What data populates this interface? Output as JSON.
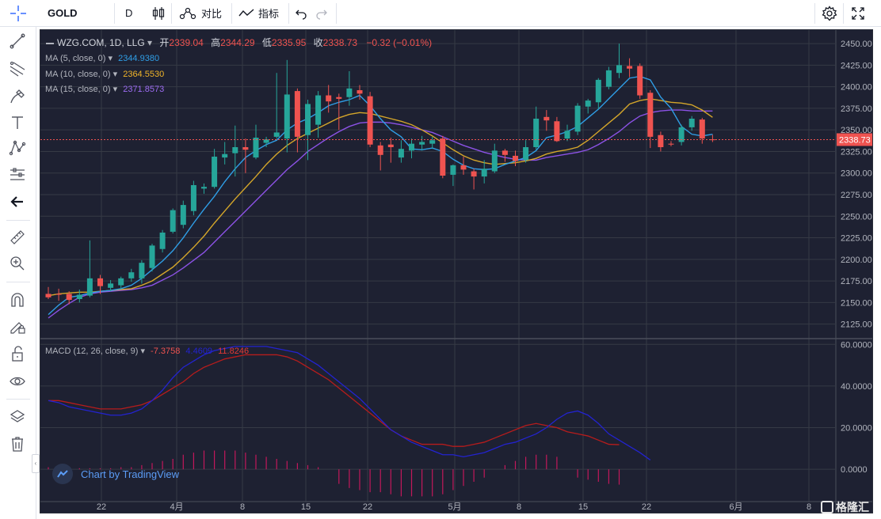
{
  "toolbar": {
    "symbol": "GOLD",
    "interval": "D",
    "compare_label": "对比",
    "indicators_label": "指标"
  },
  "legend": {
    "title": "WZG.COM, 1D, LLG",
    "ohlc": {
      "open_label": "开",
      "open": "2339.04",
      "high_label": "高",
      "high": "2344.29",
      "low_label": "低",
      "low": "2335.95",
      "close_label": "收",
      "close": "2338.73",
      "change": "−0.32 (−0.01%)"
    },
    "ma5": {
      "label": "MA (5, close, 0)",
      "value": "2344.9380",
      "color": "#2f9ee6"
    },
    "ma10": {
      "label": "MA (10, close, 0)",
      "value": "2364.5530",
      "color": "#d4a62a"
    },
    "ma15": {
      "label": "MA (15, close, 0)",
      "value": "2371.8573",
      "color": "#8c52e6"
    },
    "macd": {
      "label": "MACD (12, 26, close, 9)",
      "hist": "-7.3758",
      "macd": "4.4609",
      "signal": "11.8246"
    }
  },
  "branding": {
    "tv": "Chart by TradingView",
    "watermark": "格隆汇"
  },
  "colors": {
    "up": "#26a69a",
    "down": "#ef5350",
    "bg": "#1e2132",
    "grid": "#363a45",
    "macd_line": "#2323d0",
    "signal_line": "#b71c1c",
    "hist": "#c2185b"
  },
  "chart_data": {
    "type": "candlestick",
    "price_axis": {
      "ticks": [
        2125,
        2150,
        2175,
        2200,
        2225,
        2250,
        2275,
        2300,
        2325,
        2350,
        2375,
        2400,
        2425,
        2450
      ],
      "last_price": "2338.73",
      "ylim": [
        2110,
        2462
      ]
    },
    "macd_axis": {
      "ticks": [
        "0.0000",
        "20.0000",
        "40.0000",
        "60.0000"
      ],
      "ylim": [
        -14,
        62
      ]
    },
    "x_tick_labels": [
      "22",
      "4月",
      "8",
      "15",
      "22",
      "5月",
      "8",
      "15",
      "22",
      "6月",
      "8"
    ],
    "candles": [
      {
        "o": 2160,
        "h": 2168,
        "l": 2154,
        "c": 2156
      },
      {
        "o": 2160,
        "h": 2166,
        "l": 2152,
        "c": 2159
      },
      {
        "o": 2160,
        "h": 2163,
        "l": 2148,
        "c": 2153
      },
      {
        "o": 2154,
        "h": 2165,
        "l": 2150,
        "c": 2159
      },
      {
        "o": 2158,
        "h": 2222,
        "l": 2156,
        "c": 2178
      },
      {
        "o": 2178,
        "h": 2182,
        "l": 2160,
        "c": 2169
      },
      {
        "o": 2167,
        "h": 2176,
        "l": 2163,
        "c": 2172
      },
      {
        "o": 2170,
        "h": 2180,
        "l": 2166,
        "c": 2178
      },
      {
        "o": 2178,
        "h": 2189,
        "l": 2174,
        "c": 2185
      },
      {
        "o": 2178,
        "h": 2199,
        "l": 2172,
        "c": 2196
      },
      {
        "o": 2190,
        "h": 2218,
        "l": 2186,
        "c": 2216
      },
      {
        "o": 2212,
        "h": 2234,
        "l": 2208,
        "c": 2231
      },
      {
        "o": 2232,
        "h": 2259,
        "l": 2230,
        "c": 2257
      },
      {
        "o": 2240,
        "h": 2268,
        "l": 2236,
        "c": 2263
      },
      {
        "o": 2256,
        "h": 2291,
        "l": 2251,
        "c": 2286
      },
      {
        "o": 2282,
        "h": 2288,
        "l": 2276,
        "c": 2284
      },
      {
        "o": 2284,
        "h": 2328,
        "l": 2282,
        "c": 2319
      },
      {
        "o": 2318,
        "h": 2336,
        "l": 2310,
        "c": 2322
      },
      {
        "o": 2323,
        "h": 2355,
        "l": 2296,
        "c": 2330
      },
      {
        "o": 2330,
        "h": 2340,
        "l": 2300,
        "c": 2327
      },
      {
        "o": 2318,
        "h": 2356,
        "l": 2316,
        "c": 2341
      },
      {
        "o": 2335,
        "h": 2342,
        "l": 2330,
        "c": 2339
      },
      {
        "o": 2342,
        "h": 2416,
        "l": 2340,
        "c": 2347
      },
      {
        "o": 2340,
        "h": 2431,
        "l": 2324,
        "c": 2391
      },
      {
        "o": 2395,
        "h": 2398,
        "l": 2324,
        "c": 2342
      },
      {
        "o": 2344,
        "h": 2385,
        "l": 2315,
        "c": 2380
      },
      {
        "o": 2356,
        "h": 2395,
        "l": 2341,
        "c": 2390
      },
      {
        "o": 2390,
        "h": 2402,
        "l": 2370,
        "c": 2383
      },
      {
        "o": 2388,
        "h": 2392,
        "l": 2350,
        "c": 2386
      },
      {
        "o": 2388,
        "h": 2418,
        "l": 2378,
        "c": 2398
      },
      {
        "o": 2396,
        "h": 2402,
        "l": 2385,
        "c": 2392
      },
      {
        "o": 2389,
        "h": 2394,
        "l": 2330,
        "c": 2333
      },
      {
        "o": 2332,
        "h": 2336,
        "l": 2303,
        "c": 2321
      },
      {
        "o": 2333,
        "h": 2341,
        "l": 2312,
        "c": 2330
      },
      {
        "o": 2318,
        "h": 2338,
        "l": 2312,
        "c": 2328
      },
      {
        "o": 2326,
        "h": 2340,
        "l": 2317,
        "c": 2334
      },
      {
        "o": 2333,
        "h": 2343,
        "l": 2326,
        "c": 2336
      },
      {
        "o": 2334,
        "h": 2342,
        "l": 2328,
        "c": 2338
      },
      {
        "o": 2340,
        "h": 2343,
        "l": 2294,
        "c": 2297
      },
      {
        "o": 2298,
        "h": 2310,
        "l": 2285,
        "c": 2309
      },
      {
        "o": 2309,
        "h": 2319,
        "l": 2298,
        "c": 2304
      },
      {
        "o": 2302,
        "h": 2305,
        "l": 2281,
        "c": 2296
      },
      {
        "o": 2296,
        "h": 2315,
        "l": 2288,
        "c": 2305
      },
      {
        "o": 2302,
        "h": 2334,
        "l": 2300,
        "c": 2326
      },
      {
        "o": 2326,
        "h": 2328,
        "l": 2313,
        "c": 2321
      },
      {
        "o": 2320,
        "h": 2326,
        "l": 2308,
        "c": 2314
      },
      {
        "o": 2315,
        "h": 2338,
        "l": 2312,
        "c": 2330
      },
      {
        "o": 2330,
        "h": 2377,
        "l": 2327,
        "c": 2363
      },
      {
        "o": 2365,
        "h": 2373,
        "l": 2349,
        "c": 2361
      },
      {
        "o": 2360,
        "h": 2365,
        "l": 2336,
        "c": 2337
      },
      {
        "o": 2340,
        "h": 2356,
        "l": 2337,
        "c": 2349
      },
      {
        "o": 2348,
        "h": 2381,
        "l": 2344,
        "c": 2378
      },
      {
        "o": 2377,
        "h": 2386,
        "l": 2369,
        "c": 2384
      },
      {
        "o": 2382,
        "h": 2410,
        "l": 2374,
        "c": 2408
      },
      {
        "o": 2400,
        "h": 2423,
        "l": 2397,
        "c": 2419
      },
      {
        "o": 2416,
        "h": 2450,
        "l": 2410,
        "c": 2425
      },
      {
        "o": 2424,
        "h": 2433,
        "l": 2411,
        "c": 2421
      },
      {
        "o": 2424,
        "h": 2427,
        "l": 2386,
        "c": 2390
      },
      {
        "o": 2393,
        "h": 2396,
        "l": 2329,
        "c": 2342
      },
      {
        "o": 2344,
        "h": 2348,
        "l": 2325,
        "c": 2330
      },
      {
        "o": 2334,
        "h": 2337,
        "l": 2331,
        "c": 2333
      },
      {
        "o": 2336,
        "h": 2356,
        "l": 2332,
        "c": 2353
      },
      {
        "o": 2353,
        "h": 2366,
        "l": 2349,
        "c": 2363
      },
      {
        "o": 2362,
        "h": 2364,
        "l": 2334,
        "c": 2340
      },
      {
        "o": 2339.04,
        "h": 2344.29,
        "l": 2335.95,
        "c": 2338.73
      }
    ],
    "ma5": [
      2136,
      2147,
      2156,
      2158,
      2161,
      2163,
      2164,
      2166,
      2170,
      2178,
      2188,
      2198,
      2210,
      2225,
      2242,
      2258,
      2273,
      2290,
      2305,
      2318,
      2326,
      2333,
      2338,
      2350,
      2358,
      2363,
      2370,
      2378,
      2382,
      2385,
      2390,
      2378,
      2363,
      2350,
      2342,
      2328,
      2327,
      2329,
      2325,
      2316,
      2309,
      2305,
      2304,
      2305,
      2310,
      2314,
      2318,
      2326,
      2341,
      2344,
      2348,
      2354,
      2364,
      2374,
      2386,
      2398,
      2410,
      2412,
      2408,
      2388,
      2375,
      2354,
      2345,
      2343,
      2344.9
    ],
    "ma10": [
      2158,
      2160,
      2161,
      2162,
      2162,
      2163,
      2164,
      2165,
      2166,
      2170,
      2175,
      2183,
      2191,
      2202,
      2214,
      2227,
      2242,
      2256,
      2270,
      2283,
      2296,
      2310,
      2322,
      2332,
      2340,
      2346,
      2352,
      2358,
      2364,
      2368,
      2370,
      2369,
      2366,
      2363,
      2360,
      2356,
      2350,
      2343,
      2335,
      2327,
      2320,
      2315,
      2312,
      2310,
      2311,
      2312,
      2314,
      2317,
      2322,
      2325,
      2327,
      2330,
      2338,
      2348,
      2358,
      2368,
      2380,
      2384,
      2386,
      2384,
      2382,
      2381,
      2379,
      2373,
      2364.5
    ],
    "ma15": [
      2132,
      2141,
      2149,
      2156,
      2160,
      2162,
      2163,
      2164,
      2165,
      2167,
      2170,
      2176,
      2182,
      2190,
      2199,
      2208,
      2220,
      2232,
      2244,
      2256,
      2268,
      2280,
      2292,
      2304,
      2314,
      2325,
      2333,
      2341,
      2348,
      2354,
      2358,
      2359,
      2359,
      2358,
      2356,
      2353,
      2350,
      2347,
      2342,
      2337,
      2332,
      2328,
      2324,
      2321,
      2318,
      2316,
      2315,
      2315,
      2318,
      2320,
      2322,
      2324,
      2327,
      2333,
      2340,
      2348,
      2358,
      2366,
      2370,
      2372,
      2373,
      2373,
      2372,
      2371.9,
      2371.9
    ],
    "macd_line": [
      33,
      32,
      30,
      29,
      28,
      27,
      26,
      26,
      27,
      29,
      33,
      38,
      44,
      49,
      52,
      55,
      57,
      58,
      59,
      59,
      59,
      59,
      58,
      57,
      56,
      53,
      50,
      46,
      42,
      38,
      34,
      29,
      24,
      19,
      16,
      13,
      11,
      9,
      7,
      7,
      6,
      7,
      8,
      10,
      12,
      13,
      15,
      17,
      20,
      24,
      27,
      28,
      26,
      22,
      17,
      14,
      11,
      8,
      4.46
    ],
    "signal_line": [
      33,
      33,
      32,
      31,
      30,
      29,
      29,
      29,
      30,
      31,
      33,
      36,
      39,
      42,
      46,
      49,
      51,
      53,
      54,
      55,
      55,
      55,
      55,
      54,
      52,
      49,
      46,
      43,
      39,
      35,
      31,
      27,
      23,
      19,
      16,
      14,
      12,
      12,
      12,
      11,
      11,
      12,
      13,
      15,
      17,
      19,
      21,
      22,
      21,
      20,
      18,
      17,
      16,
      14,
      12,
      11.82
    ],
    "macd_hist": [
      1,
      1,
      1,
      0.5,
      0.5,
      0.5,
      0.5,
      1,
      1,
      2,
      3,
      4,
      5,
      7,
      8,
      9,
      9,
      9,
      9,
      8,
      7,
      6,
      5,
      4,
      3,
      2,
      1,
      0,
      -7,
      -9,
      -10,
      -11,
      -11,
      -12,
      -13,
      -13,
      -13,
      -13,
      -12,
      -10,
      -8,
      -6,
      -4,
      0,
      2,
      4,
      6,
      7,
      7,
      6,
      0,
      -4,
      -5,
      -6,
      -7,
      -7.3758
    ]
  }
}
